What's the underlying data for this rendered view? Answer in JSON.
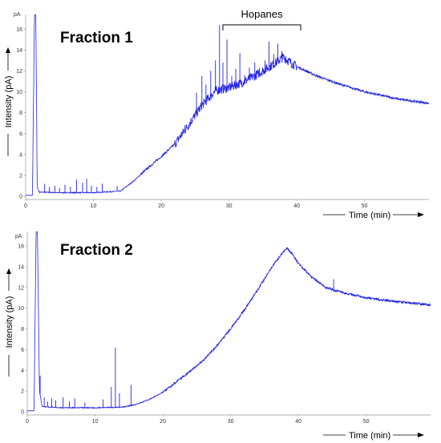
{
  "chart_data": [
    {
      "type": "line",
      "title": "Fraction 1",
      "xlabel": "Time (min)",
      "ylabel": "Intensity (pA)",
      "y_unit": "pA",
      "xlim": [
        0,
        59.5
      ],
      "ylim": [
        -0.3,
        17.4
      ],
      "x_ticks": [
        "0",
        "10",
        "20",
        "30",
        "40",
        "50"
      ],
      "y_ticks": [
        "0",
        "2",
        "4",
        "6",
        "8",
        "10",
        "12",
        "14",
        "16"
      ],
      "annotation": {
        "label": "Hopanes",
        "x_start": 29.5,
        "x_end": 40.8
      },
      "color": "#2222dd",
      "series": [
        {
          "x": [
            0,
            1,
            1.3,
            1.5,
            1.7,
            2,
            5,
            10,
            14,
            16,
            18,
            20,
            22,
            24,
            26,
            28,
            30,
            32,
            34,
            36,
            38,
            40,
            43,
            46,
            50,
            55,
            59.5
          ],
          "values": [
            0.1,
            0.1,
            17.4,
            17.4,
            0.9,
            0.4,
            0.35,
            0.35,
            0.5,
            1.5,
            2.7,
            3.8,
            5.0,
            6.8,
            8.7,
            10.1,
            10.4,
            10.9,
            11.6,
            12.4,
            13.3,
            12.4,
            11.5,
            10.8,
            10.0,
            9.3,
            8.9
          ]
        }
      ],
      "peaks": [
        {
          "x": 2.8,
          "y": 1.2
        },
        {
          "x": 3.5,
          "y": 0.9
        },
        {
          "x": 4.3,
          "y": 1.0
        },
        {
          "x": 5.0,
          "y": 0.8
        },
        {
          "x": 5.8,
          "y": 1.1
        },
        {
          "x": 6.6,
          "y": 0.9
        },
        {
          "x": 7.5,
          "y": 1.6
        },
        {
          "x": 8.4,
          "y": 1.3
        },
        {
          "x": 9.0,
          "y": 1.7
        },
        {
          "x": 9.7,
          "y": 1.0
        },
        {
          "x": 10.5,
          "y": 0.9
        },
        {
          "x": 11.3,
          "y": 1.2
        },
        {
          "x": 13.5,
          "y": 1.0
        },
        {
          "x": 23.5,
          "y": 6.8
        },
        {
          "x": 24.4,
          "y": 7.5
        },
        {
          "x": 25.2,
          "y": 9.9
        },
        {
          "x": 26.0,
          "y": 11.5
        },
        {
          "x": 26.6,
          "y": 10.7
        },
        {
          "x": 27.3,
          "y": 12.0
        },
        {
          "x": 28.0,
          "y": 13.0
        },
        {
          "x": 28.6,
          "y": 16.4
        },
        {
          "x": 29.1,
          "y": 12.8
        },
        {
          "x": 29.7,
          "y": 15.0
        },
        {
          "x": 30.4,
          "y": 11.5
        },
        {
          "x": 31.0,
          "y": 12.2
        },
        {
          "x": 31.6,
          "y": 13.7
        },
        {
          "x": 32.3,
          "y": 11.6
        },
        {
          "x": 33.0,
          "y": 12.3
        },
        {
          "x": 33.8,
          "y": 12.8
        },
        {
          "x": 34.5,
          "y": 12.3
        },
        {
          "x": 35.3,
          "y": 13.0
        },
        {
          "x": 35.9,
          "y": 14.8
        },
        {
          "x": 36.6,
          "y": 13.6
        },
        {
          "x": 37.2,
          "y": 14.6
        },
        {
          "x": 37.8,
          "y": 13.9
        },
        {
          "x": 38.4,
          "y": 13.4
        }
      ]
    },
    {
      "type": "line",
      "title": "Fraction 2",
      "xlabel": "Time (min)",
      "ylabel": "Intensity (pA)",
      "y_unit": "pA",
      "xlim": [
        0,
        59.5
      ],
      "ylim": [
        -0.3,
        17.4
      ],
      "x_ticks": [
        "0",
        "10",
        "20",
        "30",
        "40",
        "50"
      ],
      "y_ticks": [
        "0",
        "2",
        "4",
        "6",
        "8",
        "10",
        "12",
        "14",
        "16"
      ],
      "color": "#2222dd",
      "series": [
        {
          "x": [
            0,
            1,
            1.3,
            1.5,
            1.8,
            2.2,
            5,
            10,
            14,
            16,
            18,
            20,
            22,
            24,
            26,
            28,
            30,
            32,
            34,
            36,
            37.5,
            38.3,
            39,
            40,
            42,
            44,
            46,
            50,
            55,
            59.5
          ],
          "values": [
            0.1,
            0.1,
            17.4,
            17.4,
            2.0,
            0.5,
            0.4,
            0.4,
            0.45,
            0.7,
            1.2,
            1.9,
            2.9,
            3.9,
            5.0,
            6.4,
            8.0,
            9.8,
            11.8,
            13.9,
            15.2,
            15.8,
            15.3,
            14.3,
            13.0,
            12.0,
            11.6,
            11.0,
            10.6,
            10.3
          ]
        }
      ],
      "peaks": [
        {
          "x": 1.9,
          "y": 3.5
        },
        {
          "x": 2.5,
          "y": 1.4
        },
        {
          "x": 3.0,
          "y": 1.0
        },
        {
          "x": 3.6,
          "y": 1.3
        },
        {
          "x": 4.2,
          "y": 1.1
        },
        {
          "x": 5.3,
          "y": 1.4
        },
        {
          "x": 6.2,
          "y": 1.0
        },
        {
          "x": 7.0,
          "y": 1.3
        },
        {
          "x": 8.5,
          "y": 0.9
        },
        {
          "x": 11.2,
          "y": 1.2
        },
        {
          "x": 12.4,
          "y": 2.4
        },
        {
          "x": 13.0,
          "y": 6.2
        },
        {
          "x": 13.6,
          "y": 1.8
        },
        {
          "x": 15.3,
          "y": 2.6
        },
        {
          "x": 45.2,
          "y": 12.8
        }
      ]
    }
  ]
}
